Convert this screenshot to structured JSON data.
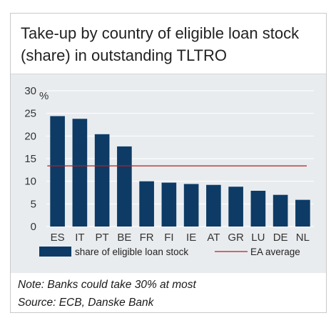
{
  "chart_data": {
    "type": "bar",
    "title": "Take-up by country of eligible loan stock (share) in outstanding TLTRO",
    "unit_label": "%",
    "categories": [
      "ES",
      "IT",
      "PT",
      "BE",
      "FR",
      "FI",
      "IE",
      "AT",
      "GR",
      "LU",
      "DE",
      "NL"
    ],
    "series": [
      {
        "name": "share of eligible loan stock",
        "values": [
          24.4,
          23.8,
          20.4,
          17.7,
          10.0,
          9.7,
          9.4,
          9.2,
          8.8,
          7.9,
          7.0,
          5.9
        ],
        "color": "#0d3b66"
      }
    ],
    "reference_line": {
      "name": "EA average",
      "value": 13.4,
      "color": "#b41e1e"
    },
    "ylim": [
      0,
      30
    ],
    "yticks": [
      0,
      5,
      10,
      15,
      20,
      25,
      30
    ],
    "grid": true,
    "legend_position": "bottom"
  },
  "note": "Note: Banks could take 30% at most",
  "source": "Source: ECB, Danske Bank"
}
